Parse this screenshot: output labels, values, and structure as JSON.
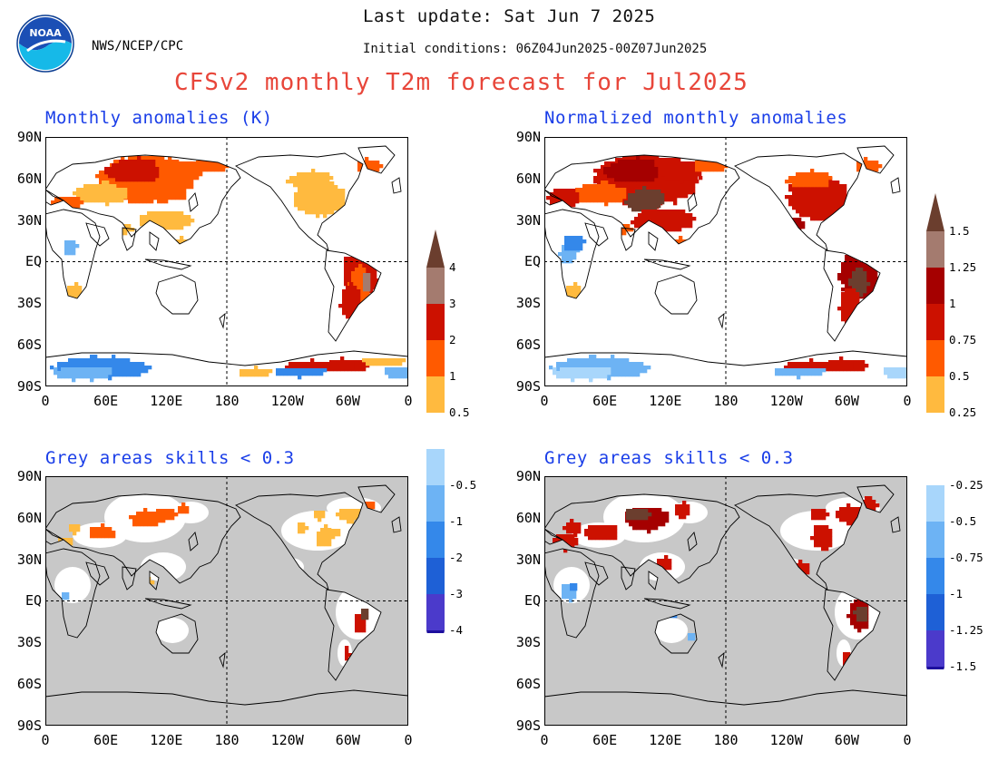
{
  "header": {
    "org": "NWS/NCEP/CPC",
    "last_update": "Last update: Sat Jun 7 2025",
    "initial_conditions": "Initial conditions: 06Z04Jun2025-00Z07Jun2025",
    "title": "CFSv2 monthly T2m forecast for Jul2025",
    "logo_text": "NOAA"
  },
  "panels": {
    "top_left_title": "Monthly anomalies (K)",
    "top_right_title": "Normalized monthly anomalies",
    "bottom_left_title": "Grey areas skills < 0.3",
    "bottom_right_title": "Grey areas skills < 0.3"
  },
  "axes": {
    "lat_labels": [
      "90N",
      "60N",
      "30N",
      "EQ",
      "30S",
      "60S",
      "90S"
    ],
    "lon_labels": [
      "0",
      "60E",
      "120E",
      "180",
      "120W",
      "60W",
      "0"
    ]
  },
  "colorbar_left": {
    "labels": [
      "4",
      "3",
      "2",
      "1",
      "0.5",
      "-0.5",
      "-1",
      "-2",
      "-3",
      "-4"
    ]
  },
  "colorbar_right": {
    "labels": [
      "1.5",
      "1.25",
      "1",
      "0.75",
      "0.5",
      "0.25",
      "-0.25",
      "-0.5",
      "-0.75",
      "-1",
      "-1.25",
      "-1.5"
    ]
  },
  "colors": {
    "title": "#e8463a",
    "panel_title": "#1a3ee8",
    "grey_mask": "#c8c8c8",
    "scale": [
      "#1d0f9e",
      "#4b3acb",
      "#1e60d6",
      "#3488ea",
      "#6db3f4",
      "#a8d6fb",
      "#ffffff",
      "#ffba3f",
      "#ff5a00",
      "#cc1100",
      "#a50000",
      "#a47b6f",
      "#6b3e2e"
    ]
  }
}
